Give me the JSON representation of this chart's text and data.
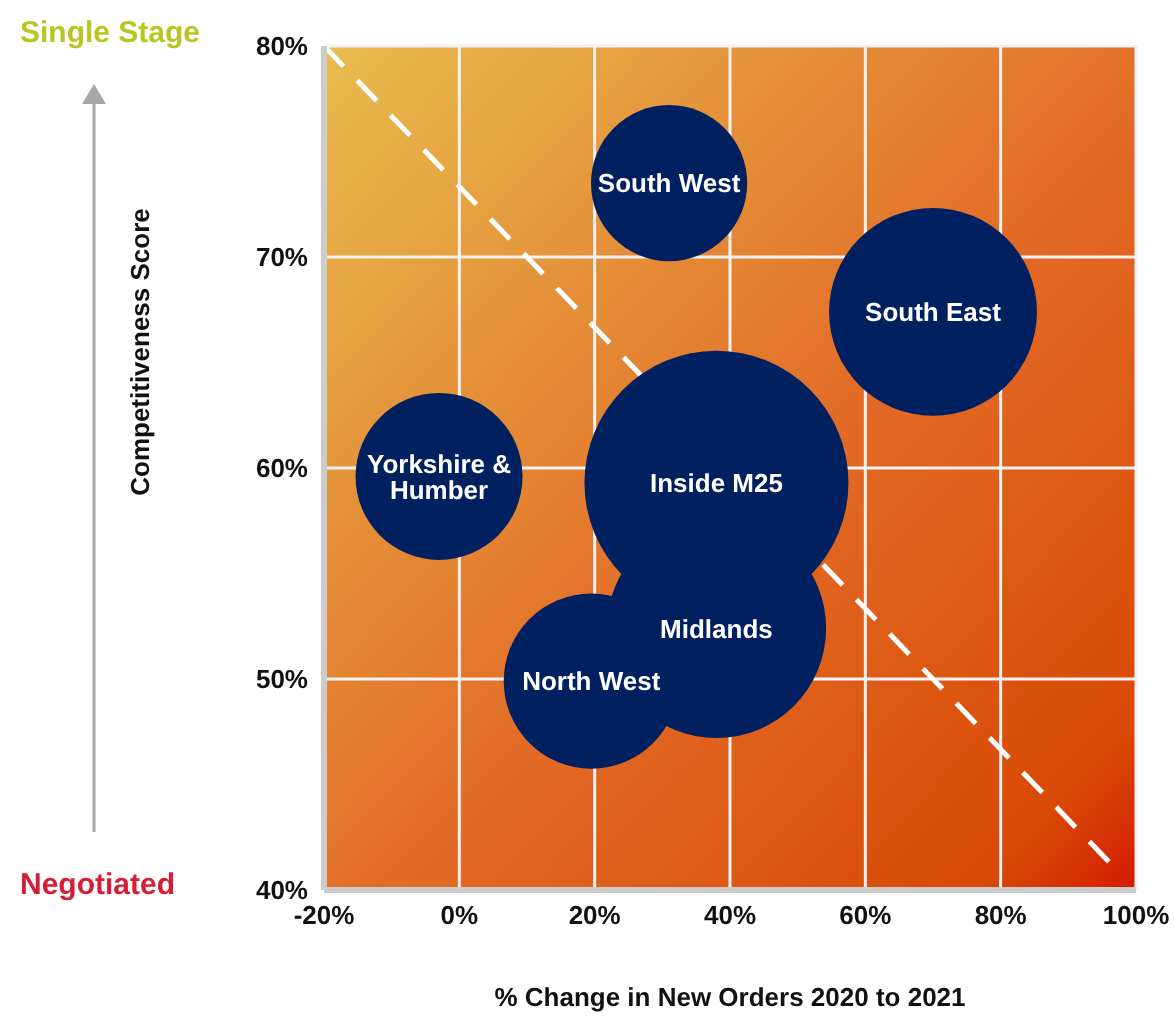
{
  "chart_data": {
    "type": "bubble",
    "xlabel": "% Change in New Orders 2020 to 2021",
    "ylabel": "Competitiveness Score",
    "annotations": [
      "Single Stage",
      "Negotiated"
    ],
    "xlim": [
      -20,
      100
    ],
    "xticks": [
      {
        "value": -20,
        "label": "-20%"
      },
      {
        "value": 0,
        "label": "0%"
      },
      {
        "value": 20,
        "label": "20%"
      },
      {
        "value": 40,
        "label": "40%"
      },
      {
        "value": 60,
        "label": "60%"
      },
      {
        "value": 80,
        "label": "80%"
      },
      {
        "value": 100,
        "label": "100%"
      }
    ],
    "ylim": [
      40,
      80
    ],
    "yticks": [
      {
        "value": 40,
        "label": "40%"
      },
      {
        "value": 50,
        "label": "50%"
      },
      {
        "value": 60,
        "label": "60%"
      },
      {
        "value": 70,
        "label": "70%"
      },
      {
        "value": 80,
        "label": "80%"
      }
    ],
    "grid": true,
    "series": [
      {
        "type": "line",
        "color": "#ffffff",
        "line_style": "dashed",
        "marker": "none",
        "x": [
          -20,
          97
        ],
        "values": [
          80,
          41
        ]
      },
      {
        "name": "South West",
        "color": "#002060",
        "x": [
          31
        ],
        "values": [
          73.5
        ],
        "sizes": [
          0.35
        ]
      },
      {
        "name": "South East",
        "color": "#002060",
        "x": [
          70
        ],
        "values": [
          67.4
        ],
        "sizes": [
          0.62
        ]
      },
      {
        "name": "Yorkshire & Humber",
        "color": "#002060",
        "x": [
          -3
        ],
        "values": [
          59.6
        ],
        "sizes": [
          0.4
        ]
      },
      {
        "name": "Inside M25",
        "color": "#002060",
        "x": [
          38
        ],
        "values": [
          59.3
        ],
        "sizes": [
          1
        ]
      },
      {
        "name": "North West",
        "color": "#002060",
        "x": [
          19.5
        ],
        "values": [
          49.9
        ],
        "sizes": [
          0.44
        ]
      },
      {
        "name": "Midlands",
        "color": "#002060",
        "x": [
          38
        ],
        "values": [
          52.4
        ],
        "sizes": [
          0.69
        ]
      }
    ]
  }
}
